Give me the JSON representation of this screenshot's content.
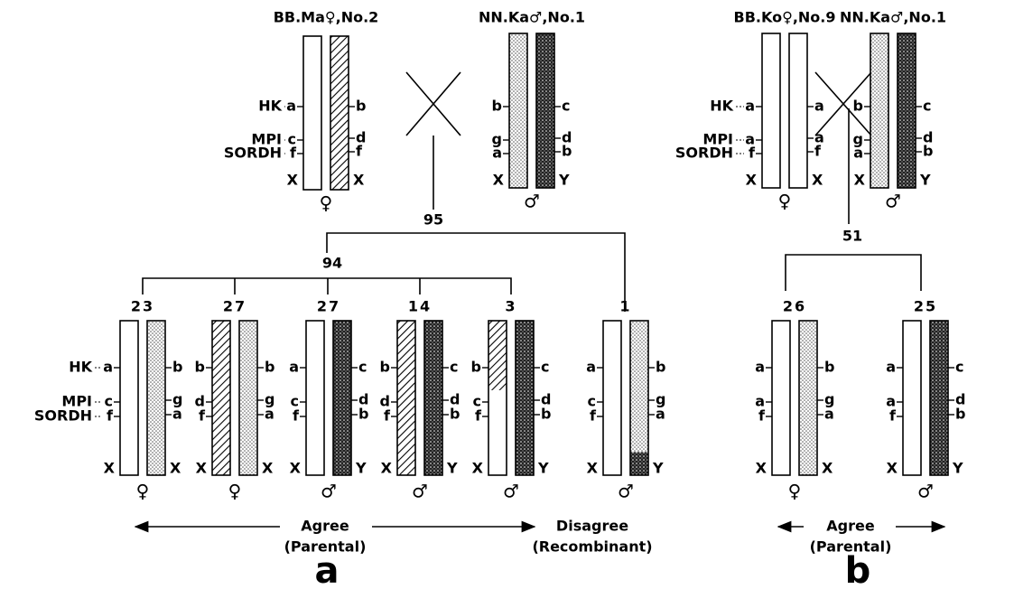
{
  "panel_a": {
    "label": "a",
    "loci": [
      "HK",
      "MPI",
      "SORDH"
    ],
    "female_parent": {
      "name": "BB.Ma♀,No.2",
      "left": [
        "a",
        "c",
        "f",
        "X"
      ],
      "right": [
        "b",
        "d",
        "f",
        "X"
      ],
      "sex": "♀"
    },
    "male_parent": {
      "name": "NN.Ka♂,No.1",
      "left": [
        "b",
        "g",
        "a",
        "X"
      ],
      "right": [
        "c",
        "d",
        "b",
        "Y"
      ],
      "sex": "♂"
    },
    "total": 95,
    "agree_total": 94,
    "offspring": [
      {
        "count": 23,
        "left": [
          "a",
          "c",
          "f",
          "X"
        ],
        "right": [
          "b",
          "g",
          "a",
          "X"
        ],
        "sex": "♀"
      },
      {
        "count": 27,
        "left": [
          "b",
          "d",
          "f",
          "X"
        ],
        "right": [
          "b",
          "g",
          "a",
          "X"
        ],
        "sex": "♀"
      },
      {
        "count": 27,
        "left": [
          "a",
          "c",
          "f",
          "X"
        ],
        "right": [
          "c",
          "d",
          "b",
          "Y"
        ],
        "sex": "♂"
      },
      {
        "count": 14,
        "left": [
          "b",
          "d",
          "f",
          "X"
        ],
        "right": [
          "c",
          "d",
          "b",
          "Y"
        ],
        "sex": "♂"
      },
      {
        "count": 3,
        "left": [
          "b",
          "c",
          "f",
          "X"
        ],
        "right": [
          "c",
          "d",
          "b",
          "Y"
        ],
        "sex": "♂"
      },
      {
        "count": 1,
        "left": [
          "a",
          "c",
          "f",
          "X"
        ],
        "right": [
          "b",
          "g",
          "a",
          "Y"
        ],
        "sex": "♂"
      }
    ],
    "agree": "Agree",
    "agree_note": "(Parental)",
    "disagree": "Disagree",
    "disagree_note": "(Recombinant)"
  },
  "panel_b": {
    "label": "b",
    "loci": [
      "HK",
      "MPI",
      "SORDH"
    ],
    "female_parent": {
      "name": "BB.Ko♀,No.9",
      "left": [
        "a",
        "a",
        "f",
        "X"
      ],
      "right": [
        "a",
        "a",
        "f",
        "X"
      ],
      "sex": "♀"
    },
    "male_parent": {
      "name": "NN.Ka♂,No.1",
      "left": [
        "b",
        "g",
        "a",
        "X"
      ],
      "right": [
        "c",
        "d",
        "b",
        "Y"
      ],
      "sex": "♂"
    },
    "total": 51,
    "offspring": [
      {
        "count": 26,
        "left": [
          "a",
          "a",
          "f",
          "X"
        ],
        "right": [
          "b",
          "g",
          "a",
          "X"
        ],
        "sex": "♀"
      },
      {
        "count": 25,
        "left": [
          "a",
          "a",
          "f",
          "X"
        ],
        "right": [
          "c",
          "d",
          "b",
          "Y"
        ],
        "sex": "♂"
      }
    ],
    "agree": "Agree",
    "agree_note": "(Parental)"
  }
}
